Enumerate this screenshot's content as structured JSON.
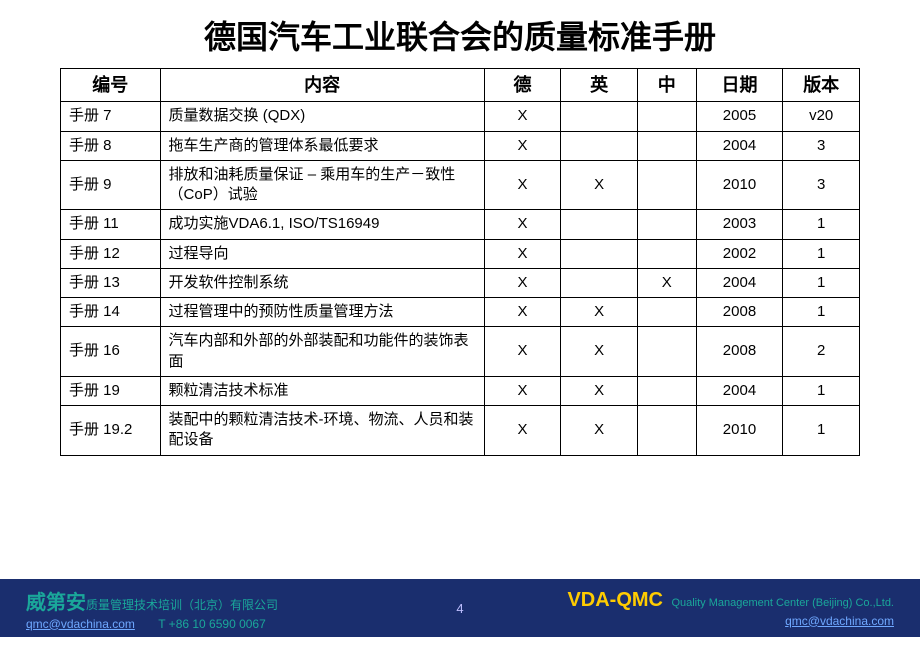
{
  "title": "德国汽车工业联合会的质量标准手册",
  "table": {
    "columns": [
      "编号",
      "内容",
      "德",
      "英",
      "中",
      "日期",
      "版本"
    ],
    "rows": [
      [
        "手册 7",
        "质量数据交换 (QDX)",
        "X",
        "",
        "",
        "2005",
        "v20"
      ],
      [
        "手册 8",
        "拖车生产商的管理体系最低要求",
        "X",
        "",
        "",
        "2004",
        "3"
      ],
      [
        "手册 9",
        "排放和油耗质量保证 – 乘用车的生产－致性（CoP）试验",
        "X",
        "X",
        "",
        "2010",
        "3"
      ],
      [
        "手册 11",
        "成功实施VDA6.1, ISO/TS16949",
        "X",
        "",
        "",
        "2003",
        "1"
      ],
      [
        "手册 12",
        "过程导向",
        "X",
        "",
        "",
        "2002",
        "1"
      ],
      [
        "手册 13",
        "开发软件控制系统",
        "X",
        "",
        "X",
        "2004",
        "1"
      ],
      [
        "手册 14",
        "过程管理中的预防性质量管理方法",
        "X",
        "X",
        "",
        "2008",
        "1"
      ],
      [
        "手册 16",
        "汽车内部和外部的外部装配和功能件的装饰表面",
        "X",
        "X",
        "",
        "2008",
        "2"
      ],
      [
        "手册 19",
        "颗粒清洁技术标准",
        "X",
        "X",
        "",
        "2004",
        "1"
      ],
      [
        "手册 19.2",
        "装配中的颗粒清洁技术-环境、物流、人员和装配设备",
        "X",
        "X",
        "",
        "2010",
        "1"
      ]
    ]
  },
  "footer": {
    "page_number": "4",
    "left": {
      "company_bold": "威第安",
      "company_rest": "质量管理技术培训（北京）有限公司",
      "email": "qmc@vdachina.com",
      "phone": "T +86 10 6590 0067"
    },
    "right": {
      "brand": "VDA-QMC",
      "sub": "Quality Management Center (Beijing) Co.,Ltd.",
      "email": "qmc@vdachina.com"
    }
  },
  "colors": {
    "footer_bg": "#1a2e6e",
    "teal": "#1aa79a",
    "yellow": "#ffcc00",
    "link": "#6fa8ff"
  }
}
